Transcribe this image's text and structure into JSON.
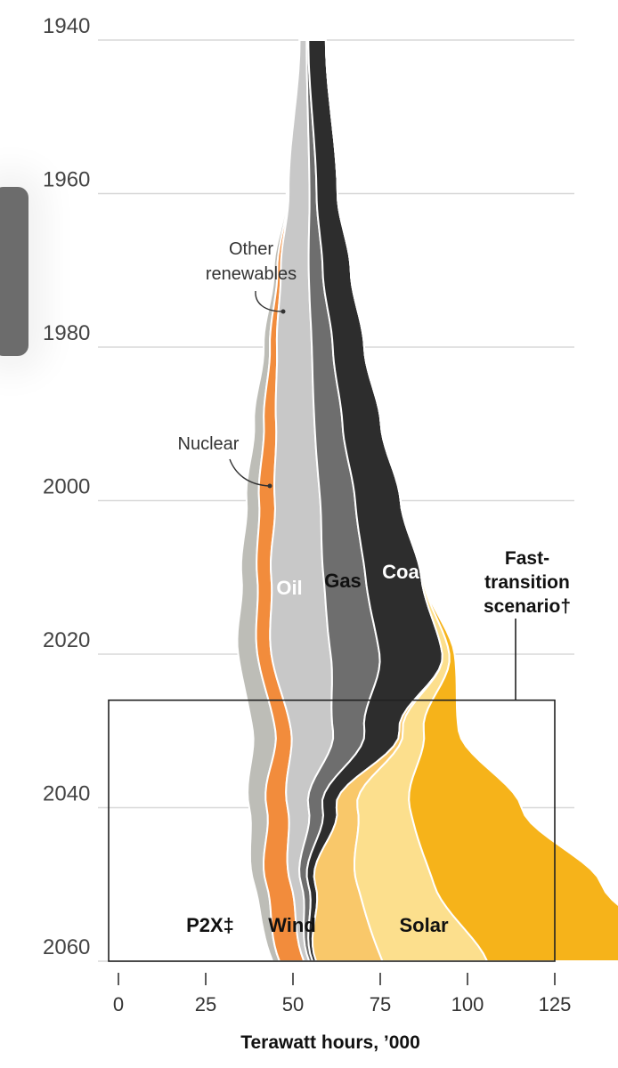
{
  "chart_data": {
    "type": "area",
    "subtype": "streamgraph",
    "orientation": "vertical",
    "title": "",
    "xlabel": "Terawatt hours, ’000",
    "ylabel": "",
    "xlim": [
      0,
      125
    ],
    "x_ticks": [
      "0",
      "25",
      "50",
      "75",
      "100",
      "125"
    ],
    "ylim": [
      1940,
      2060
    ],
    "y_ticks": [
      "1940",
      "1960",
      "1980",
      "2000",
      "2020",
      "2040",
      "2060"
    ],
    "years": [
      1940,
      1960,
      1970,
      1980,
      1990,
      2000,
      2010,
      2020,
      2030,
      2040,
      2050,
      2060
    ],
    "series": [
      {
        "key": "other_renewables",
        "color": "#bdbdb7",
        "values": [
          0.1,
          0.4,
          1.0,
          1.8,
          2.8,
          3.6,
          4.5,
          5.5,
          6.5,
          5.0,
          3.5,
          2.0
        ]
      },
      {
        "key": "nuclear",
        "color": "#f28c3c",
        "values": [
          0,
          0.2,
          1.0,
          2.0,
          3.5,
          4.5,
          4.0,
          4.0,
          4.5,
          6.0,
          7.0,
          7.0
        ]
      },
      {
        "key": "oil",
        "color": "#c8c8c8",
        "values": [
          2,
          6,
          8,
          10,
          11,
          13,
          15,
          17,
          12,
          6,
          3,
          1.5
        ]
      },
      {
        "key": "gas",
        "color": "#6e6e6e",
        "values": [
          0.5,
          2,
          4,
          6,
          8,
          10,
          12,
          14,
          9,
          4,
          2,
          1
        ]
      },
      {
        "key": "coal",
        "color": "#2d2d2d",
        "values": [
          5,
          6,
          8,
          9,
          11,
          13,
          16,
          18,
          10,
          4,
          2,
          1
        ]
      },
      {
        "key": "p2x",
        "color": "#f9c86a",
        "values": [
          0,
          0,
          0,
          0,
          0,
          0,
          0,
          0,
          1,
          6,
          12,
          19
        ]
      },
      {
        "key": "wind",
        "color": "#fcdf8d",
        "values": [
          0,
          0,
          0,
          0,
          0,
          0,
          0.5,
          2,
          6,
          15,
          22,
          30
        ]
      },
      {
        "key": "solar",
        "color": "#f6b31a",
        "values": [
          0,
          0,
          0,
          0,
          0,
          0,
          0.2,
          1.5,
          10,
          32,
          48,
          57
        ]
      }
    ],
    "labels": {
      "other_renewables": "Other\nrenewables",
      "nuclear": "Nuclear",
      "oil": "Oil",
      "gas": "Gas",
      "coal": "Coal",
      "p2x": "P2X‡",
      "wind": "Wind",
      "solar": "Solar",
      "scenario": "Fast-\ntransition\nscenario†"
    },
    "scenario_box": {
      "from_year": 2026,
      "to_year": 2060
    },
    "grid": true
  }
}
